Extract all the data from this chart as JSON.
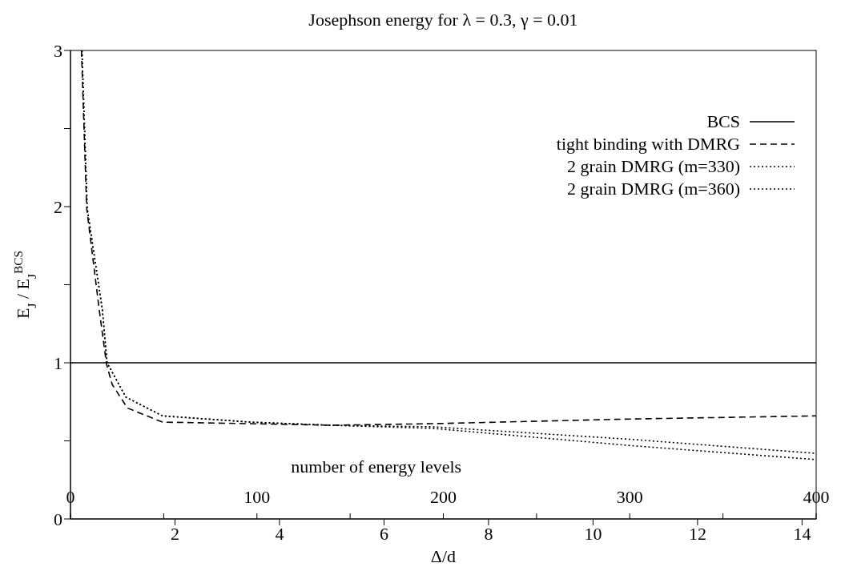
{
  "chart_data": {
    "type": "line",
    "title": "Josephson energy for λ = 0.3,  γ = 0.01",
    "xlabel": "Δ/d",
    "ylabel": "E$_{J}$ / E$_{J}$$^{BCS}$",
    "x2label": "number of energy levels",
    "xlim": [
      0,
      14.27
    ],
    "xticks": [
      2,
      4,
      6,
      8,
      10,
      12,
      14
    ],
    "x2lim": [
      0,
      400
    ],
    "x2ticks": [
      0,
      {
        "value": 50,
        "label": null
      },
      100,
      {
        "value": 150,
        "label": null
      },
      200,
      {
        "value": 250,
        "label": null
      },
      300,
      {
        "value": 350,
        "label": null
      },
      400
    ],
    "ylim": [
      0,
      3
    ],
    "yticks": [
      0,
      {
        "value": 0.5,
        "label": null
      },
      1,
      {
        "value": 1.5,
        "label": null
      },
      2,
      {
        "value": 2.5,
        "label": null
      },
      3
    ],
    "grid": false,
    "legend": "top right",
    "marker": "none",
    "series": [
      {
        "name": "BCS",
        "color": "#000000",
        "line_style": "solid",
        "x": [
          0,
          14.27
        ],
        "values": [
          1,
          1
        ]
      },
      {
        "name": "tight binding with DMRG",
        "color": "#000000",
        "line_style": "dashed",
        "x": [
          0.21,
          0.31,
          0.55,
          0.69,
          0.8,
          1.09,
          1.76,
          3.45,
          4.98,
          6.93,
          10.71,
          14.27
        ],
        "values": [
          3.0,
          1.99,
          1.34,
          0.99,
          0.86,
          0.71,
          0.62,
          0.61,
          0.6,
          0.61,
          0.64,
          0.66
        ]
      },
      {
        "name": "2 grain DMRG (m=330)",
        "color": "#000000",
        "line_style": "dotted",
        "x": [
          0.22,
          0.32,
          0.61,
          0.7,
          1.06,
          1.76,
          3.45,
          4.98,
          6.93,
          10.71,
          14.27
        ],
        "values": [
          3.0,
          1.99,
          1.34,
          1.0,
          0.78,
          0.66,
          0.62,
          0.6,
          0.58,
          0.47,
          0.38
        ]
      },
      {
        "name": "2 grain DMRG (m=360)",
        "color": "#000000",
        "line_style": "dotted",
        "x": [
          0.22,
          0.32,
          0.61,
          0.7,
          1.06,
          1.76,
          3.45,
          4.98,
          6.93,
          10.71,
          14.27
        ],
        "values": [
          3.0,
          1.99,
          1.34,
          1.0,
          0.78,
          0.66,
          0.62,
          0.6,
          0.59,
          0.51,
          0.42
        ]
      }
    ]
  }
}
